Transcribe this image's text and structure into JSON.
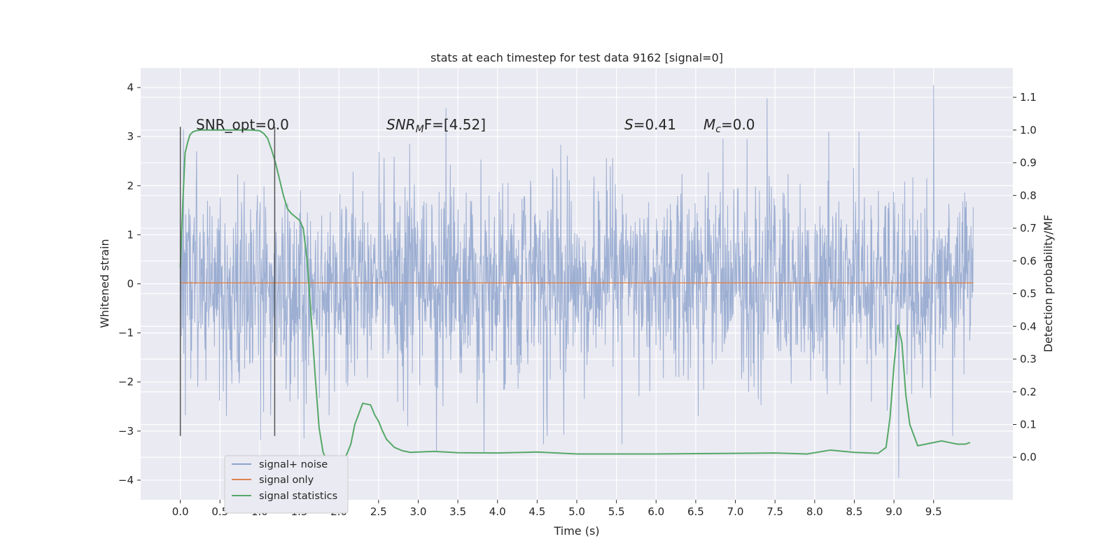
{
  "chart_data": {
    "type": "line",
    "title": "stats at each timestep for test data 9162 [signal=0]",
    "xlabel": "Time (s)",
    "ylabel_left": "Whitened strain",
    "ylabel_right": "Detection probability/MF",
    "xlim": [
      -0.5,
      10.5
    ],
    "ylim_left": [
      -4.4,
      4.4
    ],
    "ylim_right": [
      -0.13,
      1.19
    ],
    "x_ticks": [
      0.0,
      0.5,
      1.0,
      1.5,
      2.0,
      2.5,
      3.0,
      3.5,
      4.0,
      4.5,
      5.0,
      5.5,
      6.0,
      6.5,
      7.0,
      7.5,
      8.0,
      8.5,
      9.0,
      9.5
    ],
    "x_tick_labels": [
      "0.0",
      "0.5",
      "1.0",
      "1.5",
      "2.0",
      "2.5",
      "3.0",
      "3.5",
      "4.0",
      "4.5",
      "5.0",
      "5.5",
      "6.0",
      "6.5",
      "7.0",
      "7.5",
      "8.0",
      "8.5",
      "9.0",
      "9.5"
    ],
    "y_left_ticks": [
      4,
      3,
      2,
      1,
      0,
      -1,
      -2,
      -3,
      -4
    ],
    "y_left_tick_labels": [
      "4",
      "3",
      "2",
      "1",
      "0",
      "−1",
      "−2",
      "−3",
      "−4"
    ],
    "y_right_ticks": [
      1.1,
      1.0,
      0.9,
      0.8,
      0.7,
      0.6,
      0.5,
      0.4,
      0.3,
      0.2,
      0.1,
      0.0
    ],
    "y_right_tick_labels": [
      "1.1",
      "1.0",
      "0.9",
      "0.8",
      "0.7",
      "0.6",
      "0.5",
      "0.4",
      "0.3",
      "0.2",
      "0.1",
      "0.0"
    ],
    "grid": true,
    "legend_position": "lower-left",
    "legend": [
      "signal+ noise",
      "signal only",
      "signal statistics"
    ],
    "colors": {
      "noise": "#8ea3cc",
      "signal_only": "#dd8452",
      "statistics": "#55a868",
      "vline": "#555555",
      "background": "#eaeaf2",
      "grid": "#ffffff"
    },
    "annotations": {
      "snr_opt": "SNR_opt=0.0",
      "snr_mf_italic": "SNR",
      "snr_mf_sub": "M",
      "snr_mf_rest": "F=[4.52]",
      "s_label": "S",
      "s_value": "=0.41",
      "mc_label": "M",
      "mc_sub": "c",
      "mc_value": "=0.0"
    },
    "vlines": [
      {
        "x": 0.0,
        "y_range": [
          -3.1,
          3.2
        ]
      },
      {
        "x": 1.19,
        "y_range": [
          -3.1,
          3.2
        ]
      }
    ],
    "noise_series": {
      "name": "signal+ noise",
      "x_range": [
        0.0,
        10.0
      ],
      "n_samples": 2048,
      "seed": 9162,
      "std": 1.0,
      "peaks": [
        {
          "x": 9.5,
          "y": 4.05
        },
        {
          "x": 7.4,
          "y": 3.78
        },
        {
          "x": 3.35,
          "y": 3.58
        },
        {
          "x": 9.06,
          "y": -3.95
        },
        {
          "x": 3.83,
          "y": -3.45
        },
        {
          "x": 3.23,
          "y": -3.4
        },
        {
          "x": 1.01,
          "y": -3.18
        },
        {
          "x": 0.04,
          "y": 3.15
        },
        {
          "x": 1.56,
          "y": -3.15
        },
        {
          "x": 4.58,
          "y": -3.27
        },
        {
          "x": 5.57,
          "y": -3.27
        },
        {
          "x": 8.45,
          "y": -3.38
        },
        {
          "x": 9.74,
          "y": -3.1
        }
      ]
    },
    "signal_only": {
      "name": "signal only",
      "x": [
        0.0,
        10.0
      ],
      "y": [
        0.02,
        0.02
      ]
    },
    "statistics": {
      "name": "signal statistics",
      "x": [
        0.0,
        0.03,
        0.06,
        0.09,
        0.12,
        0.16,
        0.2,
        0.26,
        0.35,
        0.5,
        0.7,
        0.9,
        1.0,
        1.05,
        1.1,
        1.15,
        1.2,
        1.25,
        1.3,
        1.35,
        1.4,
        1.45,
        1.5,
        1.55,
        1.6,
        1.65,
        1.7,
        1.75,
        1.8,
        1.85,
        1.9,
        1.95,
        2.0,
        2.05,
        2.1,
        2.15,
        2.2,
        2.3,
        2.4,
        2.45,
        2.5,
        2.55,
        2.6,
        2.7,
        2.8,
        2.9,
        3.0,
        3.2,
        3.5,
        4.0,
        4.5,
        5.0,
        6.0,
        7.0,
        7.5,
        7.9,
        8.2,
        8.5,
        8.8,
        8.9,
        8.95,
        9.0,
        9.05,
        9.1,
        9.15,
        9.2,
        9.3,
        9.4,
        9.6,
        9.7,
        9.8,
        9.9,
        9.96
      ],
      "y": [
        0.58,
        0.77,
        0.93,
        0.96,
        0.985,
        0.995,
        0.998,
        1.0,
        1.0,
        1.0,
        1.0,
        1.0,
        0.998,
        0.99,
        0.975,
        0.94,
        0.9,
        0.85,
        0.8,
        0.76,
        0.745,
        0.735,
        0.725,
        0.7,
        0.6,
        0.43,
        0.25,
        0.09,
        0.015,
        -0.01,
        -0.025,
        -0.03,
        -0.027,
        -0.015,
        0.01,
        0.04,
        0.1,
        0.165,
        0.16,
        0.13,
        0.11,
        0.08,
        0.055,
        0.03,
        0.02,
        0.015,
        0.016,
        0.018,
        0.014,
        0.013,
        0.016,
        0.01,
        0.01,
        0.012,
        0.013,
        0.01,
        0.022,
        0.015,
        0.012,
        0.03,
        0.12,
        0.28,
        0.405,
        0.35,
        0.19,
        0.1,
        0.035,
        0.04,
        0.05,
        0.045,
        0.04,
        0.04,
        0.045
      ]
    }
  }
}
